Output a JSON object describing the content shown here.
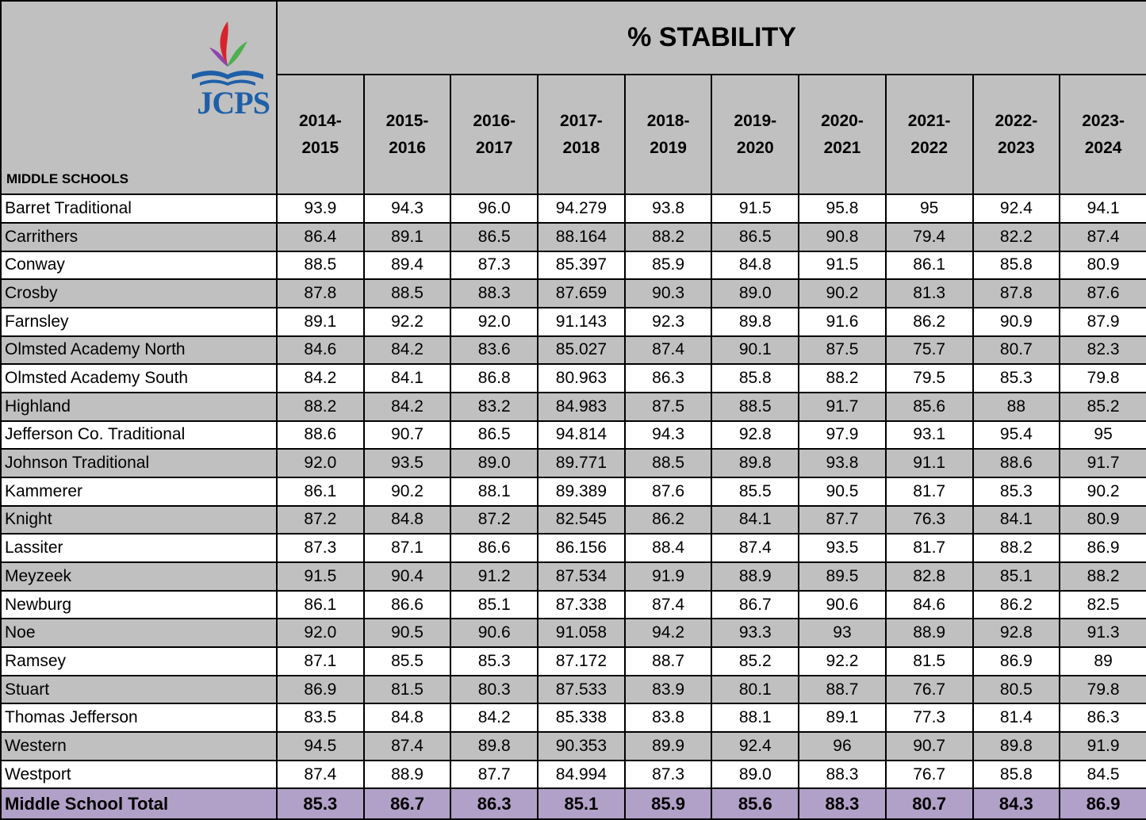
{
  "header": {
    "title": "% STABILITY",
    "corner_label": "MIDDLE SCHOOLS",
    "logo_text": "JCPS",
    "years": [
      "2014-2015",
      "2015-2016",
      "2016-2017",
      "2017-2018",
      "2018-2019",
      "2019-2020",
      "2020-2021",
      "2021-2022",
      "2022-2023",
      "2023-2024"
    ]
  },
  "table": {
    "rows": [
      {
        "school": "Barret Traditional",
        "values": [
          "93.9",
          "94.3",
          "96.0",
          "94.279",
          "93.8",
          "91.5",
          "95.8",
          "95",
          "92.4",
          "94.1"
        ]
      },
      {
        "school": "Carrithers",
        "values": [
          "86.4",
          "89.1",
          "86.5",
          "88.164",
          "88.2",
          "86.5",
          "90.8",
          "79.4",
          "82.2",
          "87.4"
        ]
      },
      {
        "school": "Conway",
        "values": [
          "88.5",
          "89.4",
          "87.3",
          "85.397",
          "85.9",
          "84.8",
          "91.5",
          "86.1",
          "85.8",
          "80.9"
        ]
      },
      {
        "school": "Crosby",
        "values": [
          "87.8",
          "88.5",
          "88.3",
          "87.659",
          "90.3",
          "89.0",
          "90.2",
          "81.3",
          "87.8",
          "87.6"
        ]
      },
      {
        "school": "Farnsley",
        "values": [
          "89.1",
          "92.2",
          "92.0",
          "91.143",
          "92.3",
          "89.8",
          "91.6",
          "86.2",
          "90.9",
          "87.9"
        ]
      },
      {
        "school": "Olmsted Academy North",
        "values": [
          "84.6",
          "84.2",
          "83.6",
          "85.027",
          "87.4",
          "90.1",
          "87.5",
          "75.7",
          "80.7",
          "82.3"
        ]
      },
      {
        "school": "Olmsted Academy South",
        "values": [
          "84.2",
          "84.1",
          "86.8",
          "80.963",
          "86.3",
          "85.8",
          "88.2",
          "79.5",
          "85.3",
          "79.8"
        ]
      },
      {
        "school": "Highland",
        "values": [
          "88.2",
          "84.2",
          "83.2",
          "84.983",
          "87.5",
          "88.5",
          "91.7",
          "85.6",
          "88",
          "85.2"
        ]
      },
      {
        "school": "Jefferson Co. Traditional",
        "values": [
          "88.6",
          "90.7",
          "86.5",
          "94.814",
          "94.3",
          "92.8",
          "97.9",
          "93.1",
          "95.4",
          "95"
        ]
      },
      {
        "school": "Johnson Traditional",
        "values": [
          "92.0",
          "93.5",
          "89.0",
          "89.771",
          "88.5",
          "89.8",
          "93.8",
          "91.1",
          "88.6",
          "91.7"
        ]
      },
      {
        "school": "Kammerer",
        "values": [
          "86.1",
          "90.2",
          "88.1",
          "89.389",
          "87.6",
          "85.5",
          "90.5",
          "81.7",
          "85.3",
          "90.2"
        ]
      },
      {
        "school": "Knight",
        "values": [
          "87.2",
          "84.8",
          "87.2",
          "82.545",
          "86.2",
          "84.1",
          "87.7",
          "76.3",
          "84.1",
          "80.9"
        ]
      },
      {
        "school": "Lassiter",
        "values": [
          "87.3",
          "87.1",
          "86.6",
          "86.156",
          "88.4",
          "87.4",
          "93.5",
          "81.7",
          "88.2",
          "86.9"
        ]
      },
      {
        "school": "Meyzeek",
        "values": [
          "91.5",
          "90.4",
          "91.2",
          "87.534",
          "91.9",
          "88.9",
          "89.5",
          "82.8",
          "85.1",
          "88.2"
        ]
      },
      {
        "school": "Newburg",
        "values": [
          "86.1",
          "86.6",
          "85.1",
          "87.338",
          "87.4",
          "86.7",
          "90.6",
          "84.6",
          "86.2",
          "82.5"
        ]
      },
      {
        "school": "Noe",
        "values": [
          "92.0",
          "90.5",
          "90.6",
          "91.058",
          "94.2",
          "93.3",
          "93",
          "88.9",
          "92.8",
          "91.3"
        ]
      },
      {
        "school": "Ramsey",
        "values": [
          "87.1",
          "85.5",
          "85.3",
          "87.172",
          "88.7",
          "85.2",
          "92.2",
          "81.5",
          "86.9",
          "89"
        ]
      },
      {
        "school": "Stuart",
        "values": [
          "86.9",
          "81.5",
          "80.3",
          "87.533",
          "83.9",
          "80.1",
          "88.7",
          "76.7",
          "80.5",
          "79.8"
        ]
      },
      {
        "school": "Thomas Jefferson",
        "values": [
          "83.5",
          "84.8",
          "84.2",
          "85.338",
          "83.8",
          "88.1",
          "89.1",
          "77.3",
          "81.4",
          "86.3"
        ]
      },
      {
        "school": "Western",
        "values": [
          "94.5",
          "87.4",
          "89.8",
          "90.353",
          "89.9",
          "92.4",
          "96",
          "90.7",
          "89.8",
          "91.9"
        ]
      },
      {
        "school": "Westport",
        "values": [
          "87.4",
          "88.9",
          "87.7",
          "84.994",
          "87.3",
          "89.0",
          "88.3",
          "76.7",
          "85.8",
          "84.5"
        ]
      }
    ],
    "total": {
      "school": "Middle School Total",
      "values": [
        "85.3",
        "86.7",
        "86.3",
        "85.1",
        "85.9",
        "85.6",
        "88.3",
        "80.7",
        "84.3",
        "86.9"
      ]
    }
  }
}
